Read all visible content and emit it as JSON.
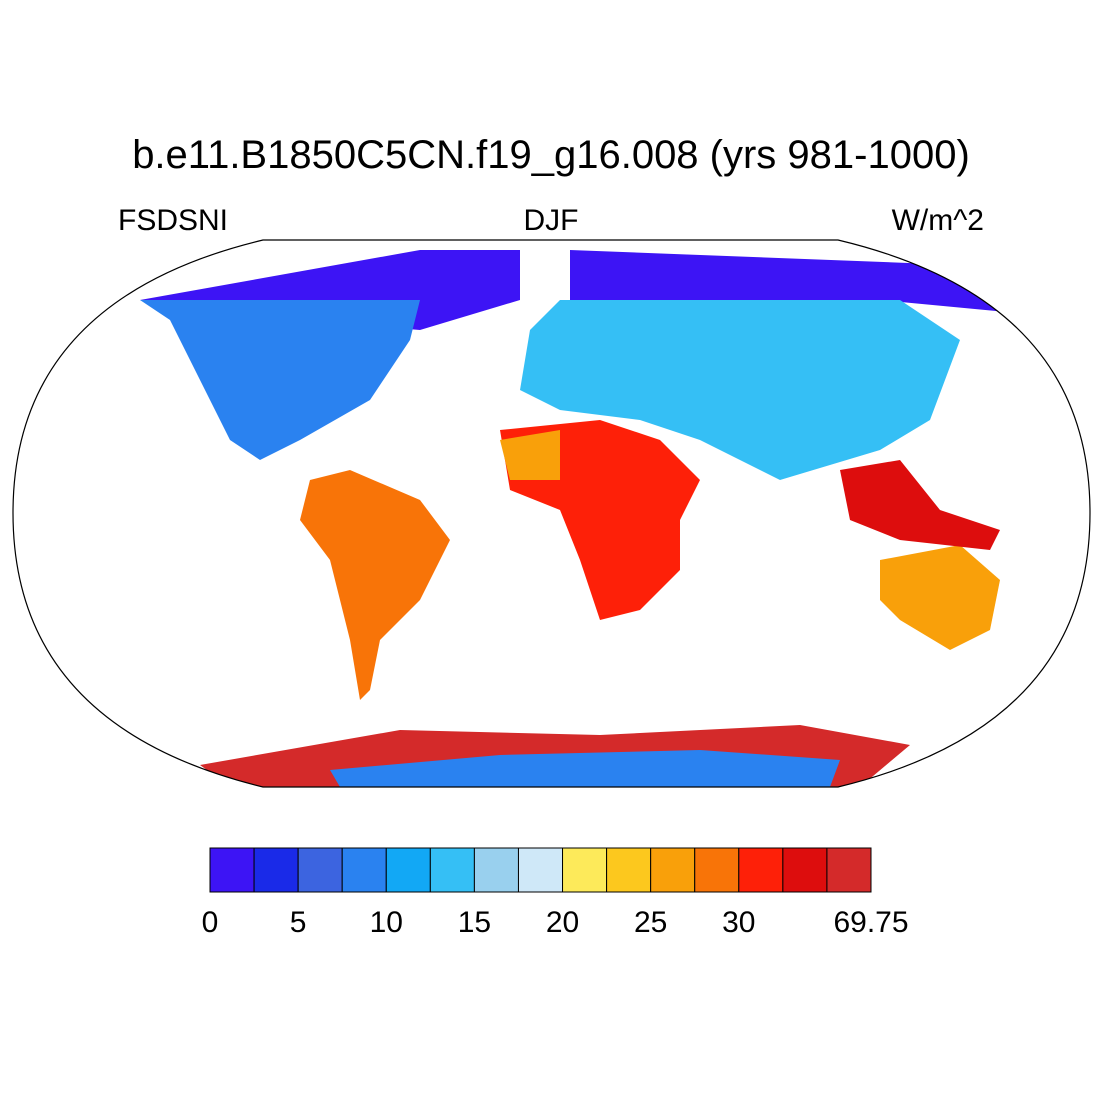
{
  "title": "b.e11.B1850C5CN.f19_g16.008 (yrs 981-1000)",
  "left_string": "FSDSNI",
  "center_string": "DJF",
  "right_string": "W/m^2",
  "colorbar": {
    "boundaries": [
      0,
      2.5,
      5,
      7.5,
      10,
      12.5,
      15,
      17.5,
      20,
      22.5,
      25,
      27.5,
      30,
      32.5,
      35,
      69.75
    ],
    "colors": [
      "#3d14f5",
      "#1a2ae8",
      "#3c64e0",
      "#2a82f0",
      "#12a8f5",
      "#35bff5",
      "#99d0ee",
      "#cfe8f8",
      "#fdea5a",
      "#fcc81e",
      "#f9a00a",
      "#f87408",
      "#fe2008",
      "#dd0d0d",
      "#d42a2a"
    ],
    "ticks": [
      0,
      5,
      10,
      15,
      20,
      25,
      30,
      69.75
    ]
  }
}
